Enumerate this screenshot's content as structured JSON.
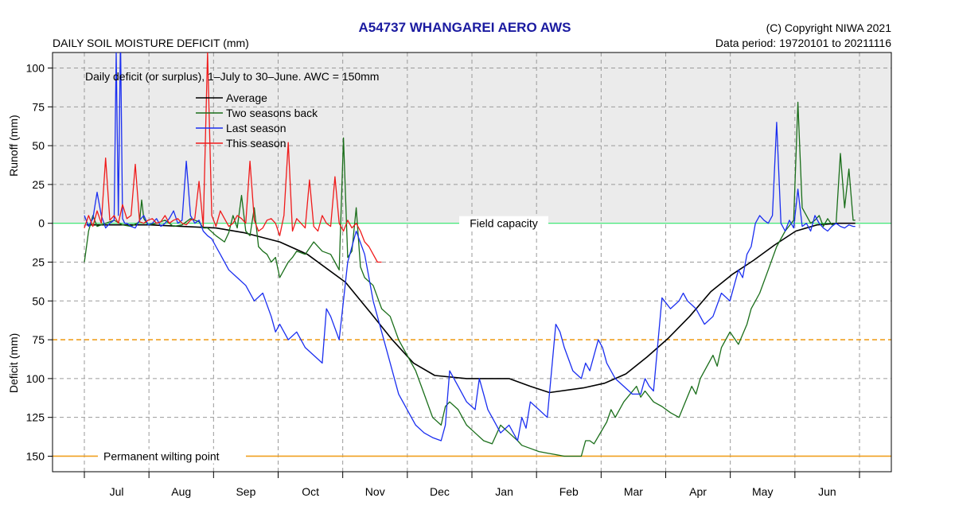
{
  "header": {
    "station_title": "A54737  WHANGAREI AERO AWS",
    "copyright": "(C) Copyright NIWA  2021",
    "data_period": "Data period:  19720101  to  20211116",
    "chart_heading": "DAILY SOIL MOISTURE DEFICIT (mm)"
  },
  "chart_data": {
    "type": "line",
    "subtitle": "Daily deficit (or surplus), 1–July to 30–June.  AWC = 150mm",
    "ylabel_upper": "Runoff (mm)",
    "ylabel_lower": "Deficit (mm)",
    "y_value_convention": "positive = runoff/surplus above field capacity, negative = deficit below field capacity",
    "ylim": [
      -160,
      110
    ],
    "y_ticks": [
      100,
      75,
      50,
      25,
      0,
      -25,
      -50,
      -75,
      -100,
      -125,
      -150
    ],
    "y_tick_labels": [
      "100",
      "75",
      "50",
      "25",
      "0",
      "25",
      "50",
      "75",
      "100",
      "125",
      "150"
    ],
    "xlim": [
      0,
      365
    ],
    "month_labels": [
      "Jul",
      "Aug",
      "Sep",
      "Oct",
      "Nov",
      "Dec",
      "Jan",
      "Feb",
      "Mar",
      "Apr",
      "May",
      "Jun"
    ],
    "grid": true,
    "legend_position": "top-left",
    "reference_lines": [
      {
        "label": "Field capacity",
        "value": 0,
        "color": "#2ee86a"
      },
      {
        "label": "",
        "value": -75,
        "color": "#f0a020"
      },
      {
        "label": "Permanent wilting point",
        "value": -150,
        "color": "#f0a020"
      }
    ],
    "series": [
      {
        "name": "Average",
        "color": "#000000",
        "x": [
          1,
          31,
          62,
          75,
          92,
          105,
          123,
          135,
          145,
          155,
          165,
          180,
          200,
          210,
          219,
          235,
          245,
          255,
          265,
          275,
          285,
          295,
          305,
          315,
          325,
          335,
          345,
          355,
          363
        ],
        "y": [
          -1,
          -1,
          -3,
          -6,
          -12,
          -20,
          -38,
          -58,
          -75,
          -90,
          -98,
          -100,
          -100,
          -105,
          -109,
          -106,
          -103,
          -97,
          -86,
          -74,
          -60,
          -44,
          -33,
          -24,
          -14,
          -5,
          -1,
          0,
          0
        ]
      },
      {
        "name": "Two seasons back",
        "color": "#1a6e1a",
        "x": [
          0,
          1,
          2,
          4,
          6,
          10,
          14,
          18,
          22,
          26,
          27,
          28,
          30,
          34,
          38,
          42,
          46,
          50,
          54,
          56,
          58,
          62,
          66,
          68,
          70,
          72,
          74,
          76,
          78,
          80,
          82,
          84,
          86,
          88,
          90,
          92,
          94,
          96,
          98,
          100,
          104,
          108,
          112,
          116,
          118,
          120,
          122,
          124,
          126,
          128,
          130,
          132,
          136,
          140,
          144,
          148,
          152,
          156,
          160,
          164,
          168,
          170,
          172,
          176,
          180,
          184,
          188,
          192,
          196,
          200,
          204,
          206,
          210,
          214,
          218,
          222,
          226,
          230,
          234,
          236,
          238,
          240,
          246,
          248,
          250,
          254,
          260,
          262,
          264,
          268,
          272,
          276,
          280,
          286,
          288,
          290,
          296,
          298,
          300,
          304,
          308,
          312,
          314,
          318,
          322,
          326,
          330,
          334,
          336,
          338,
          340,
          342,
          344,
          346,
          348,
          350,
          352,
          354,
          356,
          358,
          360,
          362,
          363
        ],
        "y": [
          -25,
          -15,
          -5,
          5,
          -2,
          0,
          2,
          -1,
          -2,
          1,
          15,
          3,
          -1,
          0,
          2,
          -2,
          -1,
          3,
          1,
          -3,
          -3,
          -8,
          -12,
          -6,
          5,
          -3,
          18,
          -5,
          -8,
          10,
          -15,
          -18,
          -20,
          -25,
          -22,
          -35,
          -30,
          -25,
          -22,
          -18,
          -20,
          -12,
          -18,
          -20,
          -25,
          -30,
          55,
          -22,
          -18,
          10,
          -28,
          -35,
          -40,
          -55,
          -60,
          -75,
          -85,
          -95,
          -110,
          -125,
          -130,
          -118,
          -115,
          -120,
          -130,
          -135,
          -140,
          -142,
          -130,
          -135,
          -140,
          -143,
          -145,
          -147,
          -148,
          -149,
          -150,
          -150,
          -150,
          -140,
          -140,
          -142,
          -128,
          -120,
          -125,
          -115,
          -105,
          -112,
          -108,
          -115,
          -118,
          -122,
          -125,
          -105,
          -110,
          -100,
          -85,
          -92,
          -80,
          -70,
          -78,
          -65,
          -55,
          -45,
          -30,
          -15,
          -5,
          2,
          78,
          10,
          5,
          0,
          2,
          5,
          -2,
          3,
          -1,
          0,
          45,
          10,
          35,
          2,
          2
        ]
      },
      {
        "name": "Last season",
        "color": "#1a2ef0",
        "x": [
          0,
          2,
          4,
          6,
          8,
          10,
          12,
          14,
          15,
          16,
          17,
          18,
          19,
          20,
          22,
          24,
          26,
          28,
          30,
          32,
          34,
          36,
          38,
          40,
          42,
          44,
          46,
          48,
          50,
          52,
          54,
          56,
          58,
          60,
          62,
          64,
          68,
          72,
          76,
          80,
          84,
          88,
          90,
          92,
          96,
          100,
          104,
          108,
          112,
          114,
          116,
          120,
          124,
          128,
          132,
          134,
          136,
          140,
          144,
          148,
          152,
          156,
          160,
          164,
          168,
          170,
          172,
          176,
          180,
          184,
          186,
          188,
          190,
          192,
          194,
          196,
          200,
          204,
          206,
          208,
          210,
          214,
          218,
          222,
          224,
          226,
          230,
          234,
          236,
          238,
          242,
          244,
          246,
          250,
          254,
          258,
          262,
          264,
          266,
          268,
          272,
          276,
          280,
          282,
          284,
          288,
          292,
          296,
          300,
          304,
          308,
          310,
          312,
          314,
          316,
          318,
          320,
          322,
          324,
          326,
          328,
          330,
          332,
          334,
          336,
          338,
          340,
          342,
          344,
          346,
          348,
          350,
          352,
          354,
          356,
          358,
          360,
          362,
          363
        ],
        "y": [
          5,
          -2,
          3,
          20,
          5,
          -3,
          0,
          2,
          110,
          5,
          120,
          3,
          0,
          0,
          -2,
          -3,
          2,
          5,
          -1,
          0,
          3,
          -2,
          0,
          3,
          8,
          0,
          2,
          40,
          5,
          0,
          2,
          -5,
          -8,
          -10,
          -15,
          -20,
          -30,
          -35,
          -40,
          -50,
          -45,
          -60,
          -70,
          -65,
          -75,
          -70,
          -80,
          -85,
          -90,
          -55,
          -60,
          -75,
          -25,
          -5,
          -20,
          -35,
          -50,
          -70,
          -90,
          -110,
          -120,
          -130,
          -135,
          -138,
          -140,
          -130,
          -95,
          -105,
          -115,
          -120,
          -100,
          -110,
          -120,
          -125,
          -130,
          -135,
          -130,
          -140,
          -125,
          -132,
          -115,
          -120,
          -125,
          -65,
          -70,
          -80,
          -95,
          -100,
          -90,
          -95,
          -75,
          -80,
          -90,
          -100,
          -105,
          -110,
          -110,
          -100,
          -105,
          -108,
          -48,
          -55,
          -50,
          -45,
          -50,
          -55,
          -65,
          -60,
          -45,
          -50,
          -30,
          -35,
          -20,
          -15,
          0,
          5,
          2,
          0,
          5,
          65,
          0,
          -5,
          2,
          -3,
          22,
          -2,
          0,
          -5,
          5,
          0,
          -3,
          -5,
          -2,
          0,
          -2,
          -3,
          -1,
          -2,
          -2
        ]
      },
      {
        "name": "This season",
        "color": "#f01a1a",
        "x": [
          0,
          2,
          4,
          6,
          8,
          10,
          12,
          14,
          16,
          18,
          20,
          22,
          24,
          26,
          28,
          30,
          32,
          34,
          36,
          38,
          40,
          42,
          44,
          46,
          48,
          50,
          52,
          54,
          56,
          58,
          60,
          62,
          64,
          66,
          68,
          70,
          72,
          74,
          76,
          78,
          80,
          82,
          84,
          86,
          88,
          90,
          92,
          94,
          96,
          98,
          100,
          102,
          104,
          106,
          108,
          110,
          112,
          114,
          116,
          118,
          120,
          122,
          124,
          126,
          128,
          130,
          132,
          134,
          136,
          138,
          140
        ],
        "y": [
          -3,
          5,
          -2,
          8,
          0,
          42,
          2,
          5,
          0,
          12,
          3,
          5,
          38,
          1,
          0,
          2,
          3,
          0,
          1,
          5,
          0,
          2,
          3,
          0,
          -1,
          2,
          3,
          27,
          -2,
          110,
          5,
          -2,
          8,
          3,
          -2,
          0,
          5,
          3,
          0,
          40,
          2,
          -5,
          -3,
          2,
          3,
          0,
          -8,
          5,
          52,
          -5,
          3,
          0,
          -3,
          28,
          -2,
          -5,
          5,
          0,
          -2,
          30,
          0,
          -5,
          2,
          -3,
          0,
          -5,
          -12,
          -15,
          -20,
          -25,
          -25
        ]
      }
    ]
  }
}
